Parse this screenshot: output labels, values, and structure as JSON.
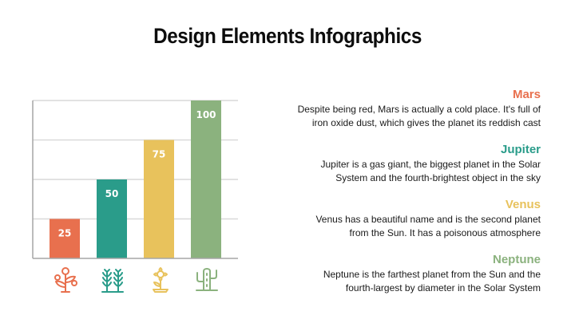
{
  "title": "Design Elements Infographics",
  "colors": {
    "mars": "#E8704E",
    "jupiter": "#2A9C8A",
    "venus": "#E8C25C",
    "neptune": "#8BB27E",
    "grid": "#d9d9d9",
    "axis": "#a6a6a6"
  },
  "chart_data": {
    "type": "bar",
    "categories": [
      "Mars",
      "Jupiter",
      "Venus",
      "Neptune"
    ],
    "values": [
      25,
      50,
      75,
      100
    ],
    "data_labels": [
      "25",
      "50",
      "75",
      "100"
    ],
    "ylim": [
      0,
      100
    ],
    "grid": true,
    "icons": [
      "flower-branch-icon",
      "wheat-icon",
      "sunflower-icon",
      "cactus-icon"
    ]
  },
  "planets": [
    {
      "name": "Mars",
      "color": "#E8704E",
      "line1": "Despite being red, Mars is actually a cold place. It's full of",
      "line2": "iron oxide dust, which gives the planet its reddish cast"
    },
    {
      "name": "Jupiter",
      "color": "#2A9C8A",
      "line1": "Jupiter is a gas giant, the biggest planet in the Solar",
      "line2": "System and the fourth-brightest object in the sky"
    },
    {
      "name": "Venus",
      "color": "#E8C25C",
      "line1": "Venus has a beautiful name and is the second planet",
      "line2": "from the Sun. It has a poisonous atmosphere"
    },
    {
      "name": "Neptune",
      "color": "#8BB27E",
      "line1": "Neptune is the farthest planet from the Sun and the",
      "line2": "fourth-largest by diameter in the Solar System"
    }
  ]
}
